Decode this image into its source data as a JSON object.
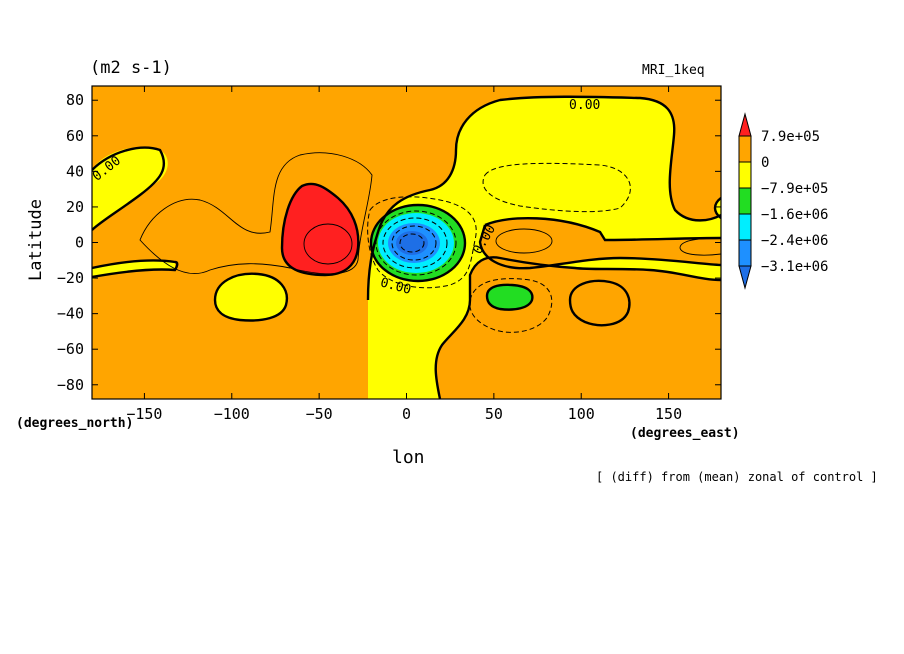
{
  "chart_data": {
    "type": "contour",
    "units_label": "(m2 s-1)",
    "model_label": "MRI_1keq",
    "xlabel": "lon",
    "ylabel": "Latitude",
    "x_unit_label": "(degrees_east)",
    "y_unit_label": "(degrees_north)",
    "xlim": [
      -180,
      180
    ],
    "ylim": [
      -88,
      88
    ],
    "x_ticks": [
      -150,
      -100,
      -50,
      0,
      50,
      100,
      150
    ],
    "x_tick_labels": [
      "−150",
      "−100",
      "−50",
      "0",
      "50",
      "100",
      "150"
    ],
    "y_ticks": [
      80,
      60,
      40,
      20,
      0,
      -20,
      -40,
      -60,
      -80
    ],
    "y_tick_labels": [
      "80",
      "60",
      "40",
      "20",
      "0",
      "−20",
      "−40",
      "−60",
      "−80"
    ],
    "contour_labels": [
      {
        "text": "0.00",
        "lon": 102,
        "lat": 78
      },
      {
        "text": "0.00",
        "lon": -172,
        "lat": 42
      },
      {
        "text": "0.00",
        "lon": 44,
        "lat": 2
      },
      {
        "text": "0.00",
        "lon": -6,
        "lat": -24
      }
    ],
    "colorbar": {
      "levels": [
        "7.9e+05",
        "0",
        "−7.9e+05",
        "−1.6e+06",
        "−2.4e+06",
        "−3.1e+06"
      ],
      "colors": [
        "#ff2020",
        "#ffa500",
        "#ffff00",
        "#22dd22",
        "#00eeff",
        "#1e90ff",
        "#1e6fe6"
      ]
    },
    "features": [
      {
        "kind": "positive max",
        "lon": -48,
        "lat": 0,
        "level": "> 7.9e+05"
      },
      {
        "kind": "negative min",
        "lon": 3,
        "lat": 0,
        "level": "< −3.1e+06"
      },
      {
        "kind": "negative min",
        "lon": 58,
        "lat": -31,
        "level": "< −7.9e+05"
      }
    ],
    "footnote": "[ (diff) from (mean) zonal of control ]"
  }
}
